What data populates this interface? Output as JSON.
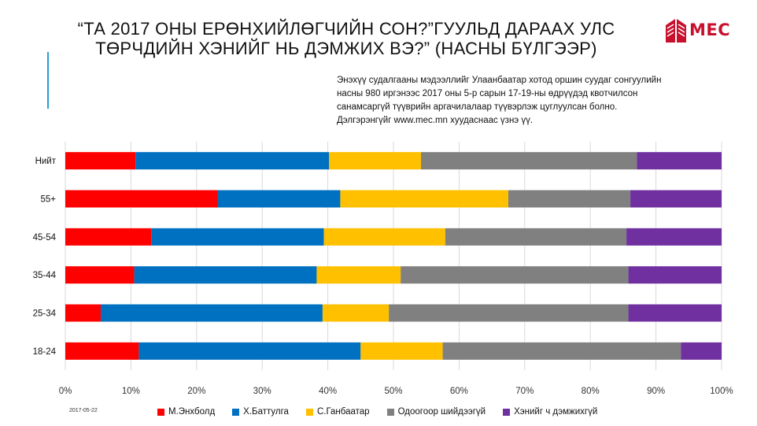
{
  "slide": {
    "title_line1": "“ТА 2017 ОНЫ ЕРӨНХИЙЛӨГЧИЙН СОН?”ГУУЛЬД ДАРААХ УЛС",
    "title_line2": "ТӨРЧДИЙН ХЭНИЙГ НЬ ДЭМЖИХ ВЭ?” (НАСНЫ БҮЛГЭЭР)",
    "logo_text": "MEC",
    "date": "2017-05-22",
    "note_lines": [
      "Энэхүү судалгааны мэдээллийг Улаанбаатар хотод оршин суудаг сонгуулийн",
      "насны 980 иргэнээс 2017 оны 5-р сарын 17-19-ны өдрүүдэд квотчилсон",
      "санамсаргүй түүврийн аргачилалаар түүвэрлэж цуглуулсан болно.",
      "Дэлгэрэнгүйг www.mec.mn хуудаснаас үзнэ үү."
    ],
    "colors": {
      "accent": "#2a9fd6",
      "logo": "#c8102e"
    }
  },
  "chart_data": {
    "type": "bar",
    "orientation": "horizontal",
    "stacked": true,
    "percent": true,
    "categories": [
      "Нийт",
      "55+",
      "45-54",
      "35-44",
      "25-34",
      "18-24"
    ],
    "series": [
      {
        "name": "М.Энхболд",
        "color": "#ff0000",
        "values": [
          10.7,
          23.2,
          13.1,
          10.5,
          5.4,
          11.2
        ]
      },
      {
        "name": "Х.Баттулга",
        "color": "#0070c0",
        "values": [
          29.5,
          18.7,
          26.3,
          27.8,
          33.8,
          33.8
        ]
      },
      {
        "name": "С.Ганбаатар",
        "color": "#ffc000",
        "values": [
          14.0,
          25.6,
          18.5,
          12.8,
          10.1,
          12.5
        ]
      },
      {
        "name": "Одоогоор шийдээгүй",
        "color": "#808080",
        "values": [
          32.9,
          18.6,
          27.6,
          34.7,
          36.5,
          36.3
        ]
      },
      {
        "name": "Хэнийг ч дэмжихгүй",
        "color": "#7030a0",
        "values": [
          12.9,
          13.9,
          14.5,
          14.2,
          14.2,
          6.2
        ]
      }
    ],
    "xlim": [
      0,
      100
    ],
    "xticks": [
      "0%",
      "10%",
      "20%",
      "30%",
      "40%",
      "50%",
      "60%",
      "70%",
      "80%",
      "90%",
      "100%"
    ],
    "xgrid": true,
    "legend_position": "bottom"
  }
}
